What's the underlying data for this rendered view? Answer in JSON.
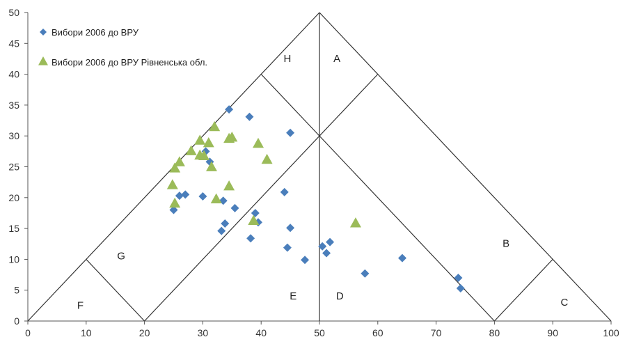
{
  "chart_data": {
    "type": "scatter",
    "title": "",
    "xlabel": "",
    "ylabel": "",
    "xlim": [
      0,
      100
    ],
    "ylim": [
      0,
      50
    ],
    "x_ticks": [
      0,
      10,
      20,
      30,
      40,
      50,
      60,
      70,
      80,
      90,
      100
    ],
    "y_ticks": [
      0,
      5,
      10,
      15,
      20,
      25,
      30,
      35,
      40,
      45,
      50
    ],
    "grid": false,
    "legend_position": "top-left",
    "region_labels": [
      {
        "text": "H",
        "x": 44.5,
        "y": 42
      },
      {
        "text": "A",
        "x": 53,
        "y": 42
      },
      {
        "text": "B",
        "x": 82,
        "y": 12
      },
      {
        "text": "C",
        "x": 92,
        "y": 2.5
      },
      {
        "text": "D",
        "x": 53.5,
        "y": 3.5
      },
      {
        "text": "E",
        "x": 45.5,
        "y": 3.5
      },
      {
        "text": "F",
        "x": 9,
        "y": 2
      },
      {
        "text": "G",
        "x": 16,
        "y": 10
      }
    ],
    "series": [
      {
        "name": "Вибори 2006 до ВРУ",
        "marker": "diamond",
        "color": "#4a7ebb",
        "points": [
          [
            34.5,
            34.3
          ],
          [
            38,
            33.1
          ],
          [
            45,
            30.5
          ],
          [
            30.5,
            27.5
          ],
          [
            31.2,
            25.8
          ],
          [
            25,
            18
          ],
          [
            26,
            20.3
          ],
          [
            27,
            20.5
          ],
          [
            30,
            20.2
          ],
          [
            33.5,
            19.5
          ],
          [
            35.5,
            18.3
          ],
          [
            39,
            17.5
          ],
          [
            39.5,
            16
          ],
          [
            33.8,
            15.8
          ],
          [
            33.2,
            14.6
          ],
          [
            38.2,
            13.4
          ],
          [
            44,
            20.9
          ],
          [
            45,
            15.1
          ],
          [
            44.5,
            11.9
          ],
          [
            47.5,
            9.9
          ],
          [
            50.5,
            12.1
          ],
          [
            51.2,
            11
          ],
          [
            51.8,
            12.8
          ],
          [
            57.8,
            7.7
          ],
          [
            64.2,
            10.2
          ],
          [
            73.8,
            7
          ],
          [
            74.2,
            5.3
          ]
        ]
      },
      {
        "name": "Вибори 2006 до ВРУ Рівненська обл.",
        "marker": "triangle",
        "color": "#9bbb59",
        "points": [
          [
            32,
            31.5
          ],
          [
            35,
            29.8
          ],
          [
            34.5,
            29.6
          ],
          [
            29.5,
            29.3
          ],
          [
            31,
            28.9
          ],
          [
            39.5,
            28.8
          ],
          [
            28,
            27.6
          ],
          [
            29.5,
            26.9
          ],
          [
            30.2,
            26.8
          ],
          [
            26,
            25.8
          ],
          [
            25.2,
            24.8
          ],
          [
            31.5,
            25
          ],
          [
            41,
            26.2
          ],
          [
            24.8,
            22.1
          ],
          [
            34.5,
            21.9
          ],
          [
            32.3,
            19.8
          ],
          [
            25.2,
            19.1
          ],
          [
            38.7,
            16.3
          ],
          [
            56.2,
            15.9
          ]
        ]
      }
    ]
  }
}
